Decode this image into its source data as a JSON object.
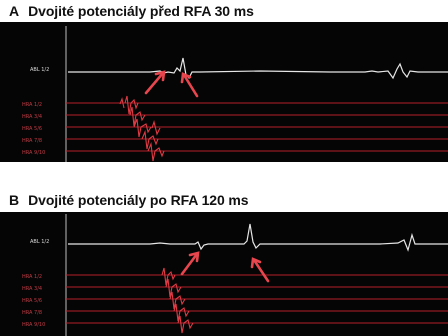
{
  "panels": [
    {
      "letter": "A",
      "title": "Dvojité potenciály před RFA 30 ms",
      "channels": [
        "ABL 1/2",
        "HRA 1/2",
        "HRA 3/4",
        "HRA 5/6",
        "HRA 7/8",
        "HRA 9/10"
      ]
    },
    {
      "letter": "B",
      "title": "Dvojité potenciály po RFA 120 ms",
      "channels": [
        "ABL 1/2",
        "HRA 1/2",
        "HRA 3/4",
        "HRA 5/6",
        "HRA 7/8",
        "HRA 9/10"
      ]
    }
  ],
  "colors": {
    "background": "#050505",
    "abl_trace": "#e6e6e6",
    "hra_trace": "#b21e28",
    "arrow": "#e8464e",
    "title_text": "#111111"
  }
}
